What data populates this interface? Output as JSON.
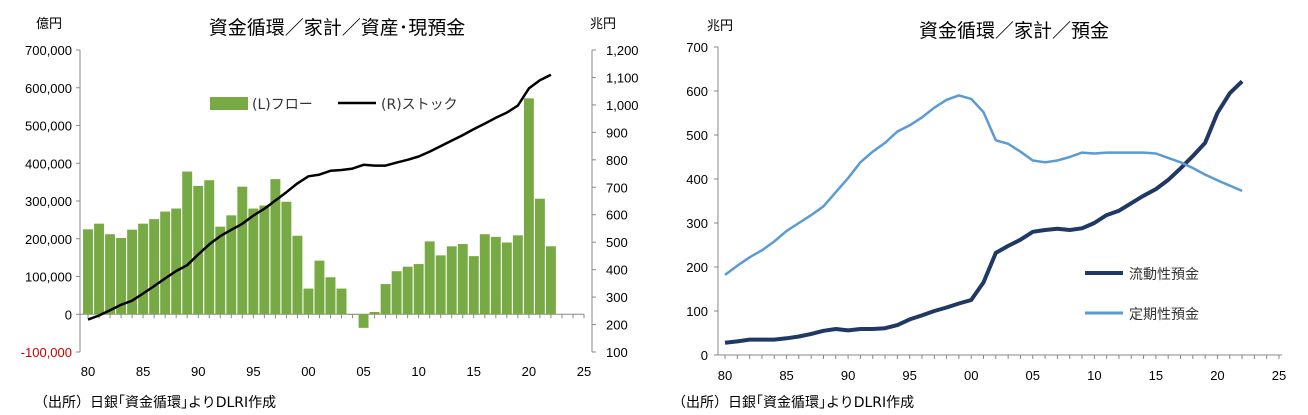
{
  "chart_data": [
    {
      "type": "bar+line",
      "title": "資金循環／家計／資産･現預金",
      "left_unit": "億円",
      "right_unit": "兆円",
      "ylim_left": [
        -100000,
        700000
      ],
      "ylim_right": [
        100,
        1200
      ],
      "yticks_left": [
        "700,000",
        "600,000",
        "500,000",
        "400,000",
        "300,000",
        "200,000",
        "100,000",
        "0",
        "-100,000"
      ],
      "yticks_right": [
        "1,200",
        "1,100",
        "1,000",
        "900",
        "800",
        "700",
        "600",
        "500",
        "400",
        "300",
        "200",
        "100"
      ],
      "xticks": [
        "80",
        "85",
        "90",
        "95",
        "00",
        "05",
        "10",
        "15",
        "20",
        "25"
      ],
      "legend_position": "top-left",
      "colors": {
        "bars": "#77AA44",
        "line": "#000000",
        "negative_tick": "#CC0000"
      },
      "years": [
        1980,
        1981,
        1982,
        1983,
        1984,
        1985,
        1986,
        1987,
        1988,
        1989,
        1990,
        1991,
        1992,
        1993,
        1994,
        1995,
        1996,
        1997,
        1998,
        1999,
        2000,
        2001,
        2002,
        2003,
        2004,
        2005,
        2006,
        2007,
        2008,
        2009,
        2010,
        2011,
        2012,
        2013,
        2014,
        2015,
        2016,
        2017,
        2018,
        2019,
        2020,
        2021,
        2022
      ],
      "series": [
        {
          "name": "(L)フロー",
          "kind": "bar",
          "values": [
            225000,
            240000,
            212000,
            202000,
            224000,
            240000,
            252000,
            272000,
            280000,
            378000,
            340000,
            355000,
            232000,
            262000,
            338000,
            280000,
            288000,
            358000,
            298000,
            208000,
            68000,
            142000,
            98000,
            68000,
            0,
            -36000,
            6000,
            80000,
            114000,
            126000,
            133000,
            193000,
            156000,
            180000,
            186000,
            154000,
            212000,
            205000,
            190000,
            209000,
            572000,
            306000,
            180000
          ]
        },
        {
          "name": "(R)ストック",
          "kind": "line",
          "values": [
            218,
            233,
            252,
            272,
            287,
            313,
            340,
            368,
            395,
            416,
            455,
            492,
            522,
            545,
            567,
            597,
            622,
            652,
            682,
            714,
            740,
            746,
            760,
            763,
            768,
            782,
            779,
            779,
            790,
            800,
            812,
            830,
            850,
            870,
            890,
            912,
            932,
            953,
            972,
            998,
            1060,
            1090,
            1110
          ]
        }
      ]
    },
    {
      "type": "line",
      "title": "資金循環／家計／預金",
      "left_unit": "兆円",
      "ylim": [
        0,
        700
      ],
      "yticks": [
        "700",
        "600",
        "500",
        "400",
        "300",
        "200",
        "100",
        "0"
      ],
      "xticks": [
        "80",
        "85",
        "90",
        "95",
        "00",
        "05",
        "10",
        "15",
        "20",
        "25"
      ],
      "legend_position": "bottom-right",
      "years": [
        1980,
        1981,
        1982,
        1983,
        1984,
        1985,
        1986,
        1987,
        1988,
        1989,
        1990,
        1991,
        1992,
        1993,
        1994,
        1995,
        1996,
        1997,
        1998,
        1999,
        2000,
        2001,
        2002,
        2003,
        2004,
        2005,
        2006,
        2007,
        2008,
        2009,
        2010,
        2011,
        2012,
        2013,
        2014,
        2015,
        2016,
        2017,
        2018,
        2019,
        2020,
        2021,
        2022
      ],
      "series": [
        {
          "name": "流動性預金",
          "color": "#1F3864",
          "values": [
            28,
            31,
            35,
            35,
            35,
            38,
            42,
            48,
            55,
            59,
            56,
            59,
            59,
            61,
            68,
            81,
            90,
            100,
            108,
            117,
            125,
            165,
            232,
            248,
            262,
            280,
            284,
            287,
            284,
            288,
            300,
            318,
            328,
            345,
            362,
            377,
            398,
            424,
            452,
            482,
            550,
            595,
            622
          ]
        },
        {
          "name": "定期性預金",
          "color": "#5B9BD5",
          "values": [
            182,
            203,
            222,
            238,
            258,
            282,
            300,
            318,
            338,
            370,
            402,
            438,
            462,
            482,
            508,
            522,
            540,
            562,
            580,
            590,
            582,
            552,
            488,
            480,
            462,
            442,
            438,
            442,
            450,
            460,
            458,
            460,
            460,
            460,
            460,
            458,
            448,
            438,
            425,
            410,
            397,
            385,
            373
          ]
        }
      ]
    }
  ],
  "source_note": "（出所）日銀｢資金循環｣よりDLRI作成"
}
